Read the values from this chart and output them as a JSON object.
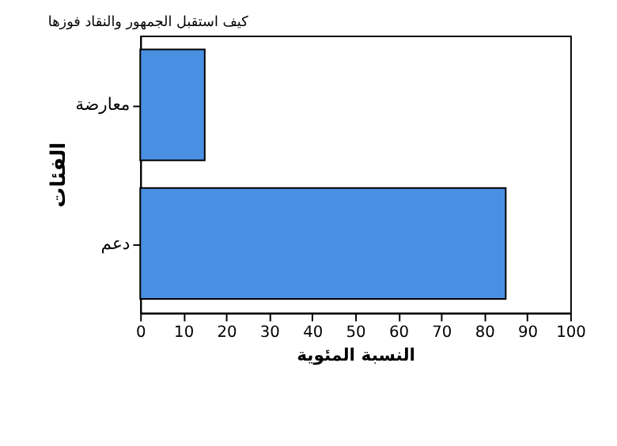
{
  "chart_data": {
    "type": "bar",
    "orientation": "horizontal",
    "title": "كيف استقبل الجمهور والنقاد فوزها",
    "xlabel": "النسبة المئوية",
    "ylabel": "الفئات",
    "categories": [
      "معارضة",
      "دعم"
    ],
    "values": [
      15,
      85
    ],
    "color": "#4a90e2",
    "xlim": [
      0,
      100
    ],
    "xticks": [
      0,
      10,
      20,
      30,
      40,
      50,
      60,
      70,
      80,
      90,
      100
    ],
    "grid": false
  }
}
